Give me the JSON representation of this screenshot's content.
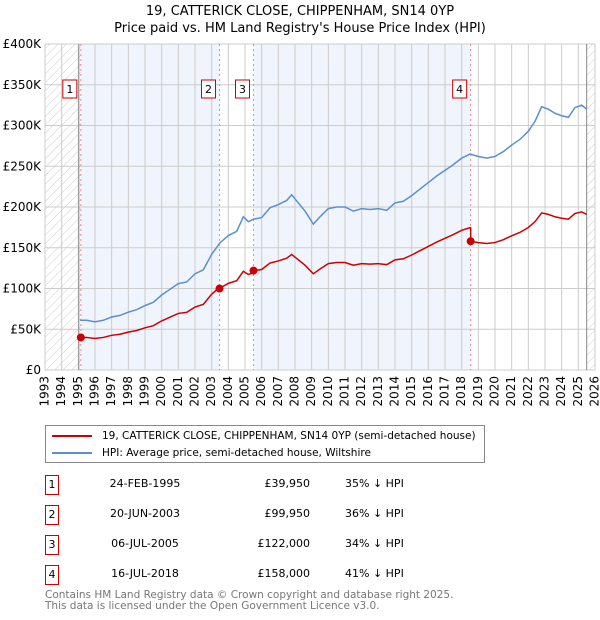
{
  "chart_data": {
    "type": "line",
    "title": "19, CATTERICK CLOSE, CHIPPENHAM, SN14 0YP",
    "subtitle": "Price paid vs. HM Land Registry's House Price Index (HPI)",
    "xlim": [
      1993,
      2026
    ],
    "ylim": [
      0,
      400000
    ],
    "y_ticks": [
      0,
      50000,
      100000,
      150000,
      200000,
      250000,
      300000,
      350000,
      400000
    ],
    "y_tick_labels": [
      "£0",
      "£50K",
      "£100K",
      "£150K",
      "£200K",
      "£250K",
      "£300K",
      "£350K",
      "£400K"
    ],
    "x_ticks": [
      1993,
      1994,
      1995,
      1996,
      1997,
      1998,
      1999,
      2000,
      2001,
      2002,
      2003,
      2004,
      2005,
      2006,
      2007,
      2008,
      2009,
      2010,
      2011,
      2012,
      2013,
      2014,
      2015,
      2016,
      2017,
      2018,
      2019,
      2020,
      2021,
      2022,
      2023,
      2024,
      2025,
      2026
    ],
    "grid": true,
    "series": [
      {
        "name": "19, CATTERICK CLOSE, CHIPPENHAM, SN14 0YP (semi-detached house)",
        "color": "#cc0000",
        "derived_from": "hpi_scaled_by_last_sale"
      },
      {
        "name": "HPI: Average price, semi-detached house, Wiltshire",
        "color": "#5b8fd0",
        "x": [
          1995.1,
          1995.5,
          1996,
          1996.5,
          1997,
          1997.5,
          1998,
          1998.5,
          1999,
          1999.5,
          2000,
          2000.5,
          2001,
          2001.5,
          2002,
          2002.5,
          2003,
          2003.5,
          2004,
          2004.5,
          2004.9,
          2005.2,
          2005.5,
          2006,
          2006.5,
          2007,
          2007.5,
          2007.8,
          2008.2,
          2008.6,
          2009.1,
          2009.5,
          2010,
          2010.5,
          2011,
          2011.5,
          2012,
          2012.5,
          2013,
          2013.5,
          2014,
          2014.5,
          2015,
          2015.5,
          2016,
          2016.5,
          2017,
          2017.5,
          2018,
          2018.5,
          2019,
          2019.5,
          2020,
          2020.5,
          2021,
          2021.5,
          2022,
          2022.4,
          2022.8,
          2023.2,
          2023.6,
          2024,
          2024.4,
          2024.8,
          2025.2,
          2025.5
        ],
        "y": [
          61000,
          61000,
          59000,
          61000,
          65000,
          67000,
          71000,
          74000,
          79000,
          83000,
          92000,
          99000,
          106000,
          108000,
          118000,
          123000,
          142000,
          156000,
          165000,
          170000,
          188000,
          182000,
          185000,
          187000,
          199000,
          203000,
          208000,
          215000,
          205000,
          195000,
          179000,
          188000,
          198000,
          200000,
          200000,
          195000,
          198000,
          197000,
          198000,
          196000,
          205000,
          207000,
          214000,
          222000,
          230000,
          238000,
          245000,
          252000,
          260000,
          265000,
          262000,
          260000,
          262000,
          268000,
          276000,
          283000,
          293000,
          305000,
          323000,
          320000,
          315000,
          312000,
          310000,
          322000,
          325000,
          320000
        ]
      },
      {
        "name": "sales",
        "x": [
          1995.15,
          2003.47,
          2005.51,
          2018.54
        ],
        "y": [
          39950,
          99950,
          122000,
          158000
        ],
        "labels": [
          "1",
          "2",
          "3",
          "4"
        ]
      }
    ]
  },
  "legend": {
    "property": "19, CATTERICK CLOSE, CHIPPENHAM, SN14 0YP (semi-detached house)",
    "hpi": "HPI: Average price, semi-detached house, Wiltshire"
  },
  "transactions": [
    {
      "num": "1",
      "date": "24-FEB-1995",
      "price": "£39,950",
      "hpi": "35% ↓ HPI"
    },
    {
      "num": "2",
      "date": "20-JUN-2003",
      "price": "£99,950",
      "hpi": "36% ↓ HPI"
    },
    {
      "num": "3",
      "date": "06-JUL-2005",
      "price": "£122,000",
      "hpi": "34% ↓ HPI"
    },
    {
      "num": "4",
      "date": "16-JUL-2018",
      "price": "£158,000",
      "hpi": "41% ↓ HPI"
    }
  ],
  "footer": {
    "line1": "Contains HM Land Registry data © Crown copyright and database right 2025.",
    "line2": "This data is licensed under the Open Government Licence v3.0."
  },
  "colors": {
    "property": "#cc0000",
    "hpi": "#5b8fd0",
    "shade": "#f0f4fc"
  }
}
